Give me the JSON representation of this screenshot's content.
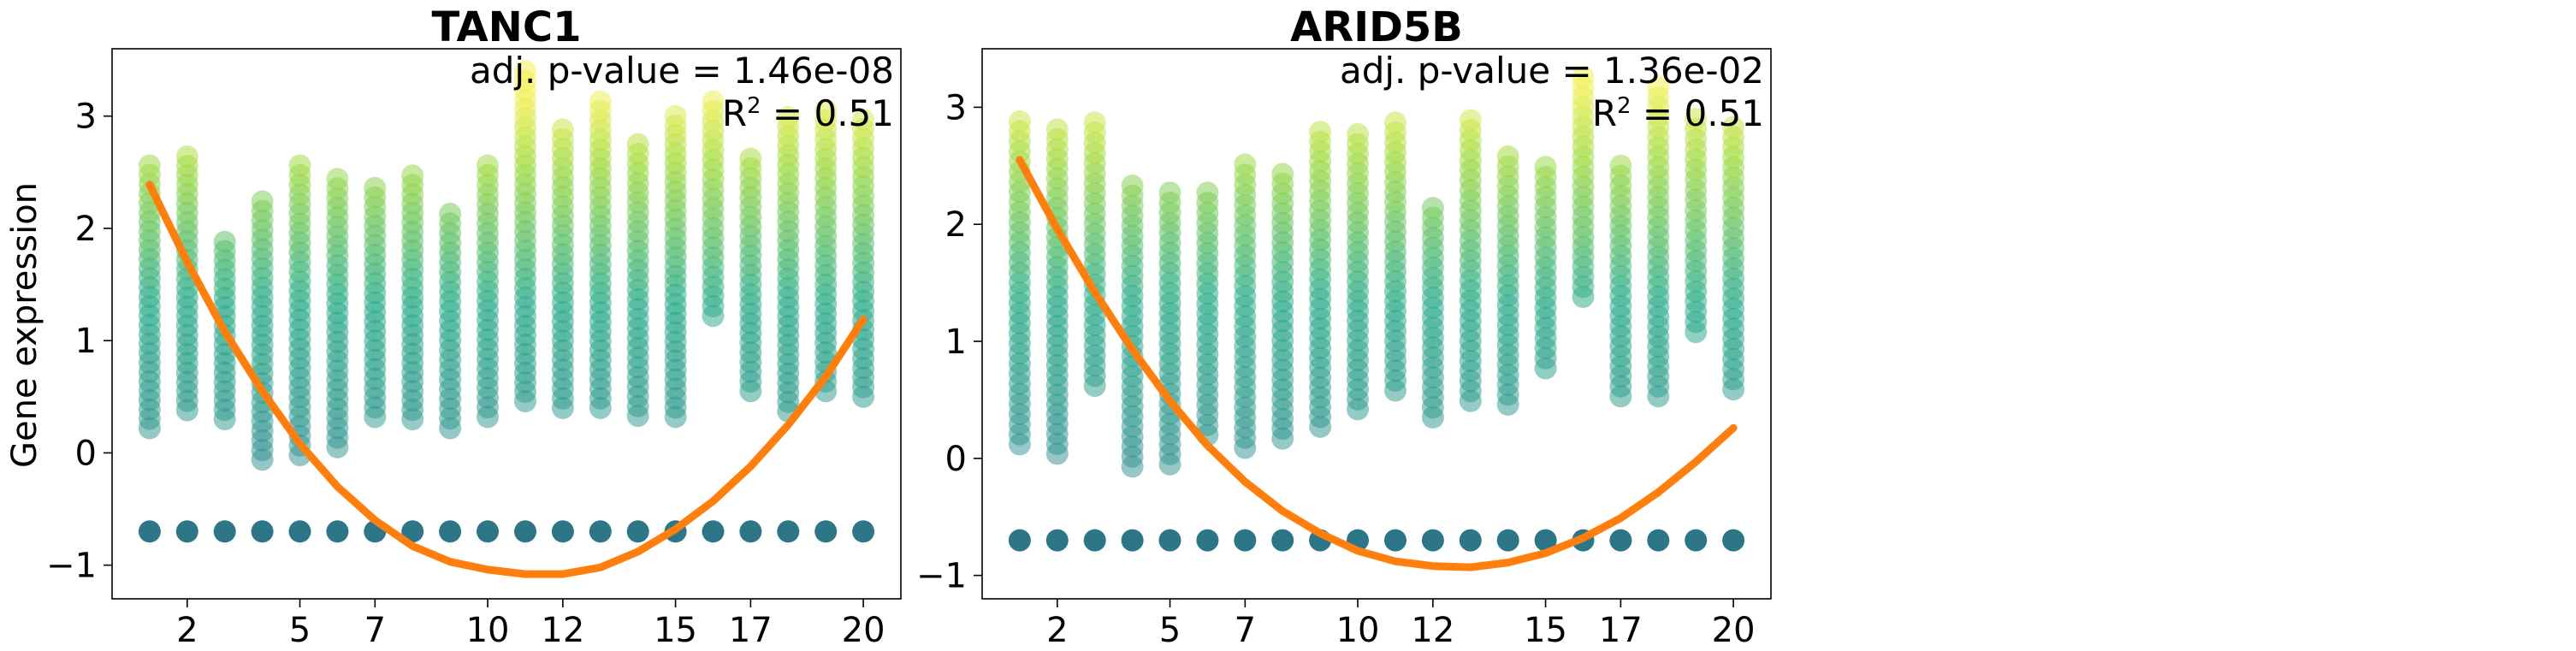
{
  "figure": {
    "ylabel": "Gene expression"
  },
  "chart_data": [
    {
      "type": "scatter",
      "title": "TANC1",
      "xlabel": "",
      "ylabel": "Gene expression",
      "x_ticks": [
        2,
        5,
        7,
        10,
        12,
        15,
        17,
        20
      ],
      "y_ticks": [
        -1,
        0,
        1,
        2,
        3
      ],
      "xlim": [
        0,
        21
      ],
      "ylim": [
        -1.3,
        3.6
      ],
      "annotation": {
        "pvalue": "adj. p-value = 1.46e-08",
        "r2_prefix": "R",
        "r2_sup": "2",
        "r2_suffix": " = 0.51"
      },
      "groups_x": [
        1,
        2,
        3,
        4,
        5,
        6,
        7,
        8,
        9,
        10,
        11,
        12,
        13,
        14,
        15,
        16,
        17,
        18,
        19,
        20
      ],
      "zero_level": -0.7,
      "nonzero_min": [
        0.22,
        0.38,
        0.3,
        -0.06,
        -0.02,
        0.05,
        0.32,
        0.3,
        0.22,
        0.32,
        0.46,
        0.4,
        0.4,
        0.33,
        0.32,
        1.22,
        0.55,
        0.37,
        0.55,
        0.5
      ],
      "nonzero_max": [
        2.56,
        2.64,
        1.88,
        2.24,
        2.56,
        2.44,
        2.36,
        2.47,
        2.13,
        2.56,
        3.4,
        2.88,
        3.13,
        2.75,
        3.0,
        3.13,
        2.62,
        2.99,
        3.05,
        2.97
      ],
      "fit_curve": {
        "x": [
          1,
          2,
          3,
          4,
          5,
          6,
          7,
          8,
          9,
          10,
          11,
          12,
          13,
          14,
          15,
          16,
          17,
          18,
          19,
          20
        ],
        "y": [
          2.39,
          1.7,
          1.08,
          0.55,
          0.08,
          -0.3,
          -0.6,
          -0.83,
          -0.97,
          -1.04,
          -1.08,
          -1.08,
          -1.02,
          -0.88,
          -0.68,
          -0.43,
          -0.12,
          0.25,
          0.68,
          1.19
        ],
        "color": "#ff7f0e"
      },
      "colors": {
        "zero_points": "#2c7688",
        "low": "#2e8e8f",
        "mid": "#22a884",
        "high": "#a0da39",
        "top": "#f4f04a",
        "fit": "#ff7f0e"
      }
    },
    {
      "type": "scatter",
      "title": "ARID5B",
      "xlabel": "",
      "ylabel": "",
      "x_ticks": [
        2,
        5,
        7,
        10,
        12,
        15,
        17,
        20
      ],
      "y_ticks": [
        -1,
        0,
        1,
        2,
        3
      ],
      "xlim": [
        0,
        21
      ],
      "ylim": [
        -1.2,
        3.5
      ],
      "annotation": {
        "pvalue": "adj. p-value = 1.36e-02",
        "r2_prefix": "R",
        "r2_sup": "2",
        "r2_suffix": " = 0.51"
      },
      "groups_x": [
        1,
        2,
        3,
        4,
        5,
        6,
        7,
        8,
        9,
        10,
        11,
        12,
        13,
        14,
        15,
        16,
        17,
        18,
        19,
        20
      ],
      "zero_level": -0.7,
      "nonzero_min": [
        0.12,
        0.04,
        0.62,
        -0.07,
        -0.05,
        0.2,
        0.09,
        0.17,
        0.27,
        0.42,
        0.58,
        0.35,
        0.49,
        0.46,
        0.77,
        1.38,
        0.53,
        0.53,
        1.08,
        0.59
      ],
      "nonzero_max": [
        2.88,
        2.81,
        2.87,
        2.33,
        2.27,
        2.27,
        2.51,
        2.43,
        2.79,
        2.77,
        2.87,
        2.14,
        2.89,
        2.58,
        2.49,
        3.26,
        2.5,
        3.17,
        2.9,
        2.83
      ],
      "fit_curve": {
        "x": [
          1,
          2,
          3,
          4,
          5,
          6,
          7,
          8,
          9,
          10,
          11,
          12,
          13,
          14,
          15,
          16,
          17,
          18,
          19,
          20
        ],
        "y": [
          2.55,
          1.96,
          1.42,
          0.93,
          0.49,
          0.11,
          -0.2,
          -0.45,
          -0.64,
          -0.79,
          -0.88,
          -0.92,
          -0.93,
          -0.89,
          -0.81,
          -0.68,
          -0.51,
          -0.29,
          -0.03,
          0.26
        ],
        "color": "#ff7f0e"
      },
      "colors": {
        "zero_points": "#2c7688",
        "low": "#2e8e8f",
        "mid": "#22a884",
        "high": "#a0da39",
        "top": "#f4f04a",
        "fit": "#ff7f0e"
      }
    }
  ]
}
